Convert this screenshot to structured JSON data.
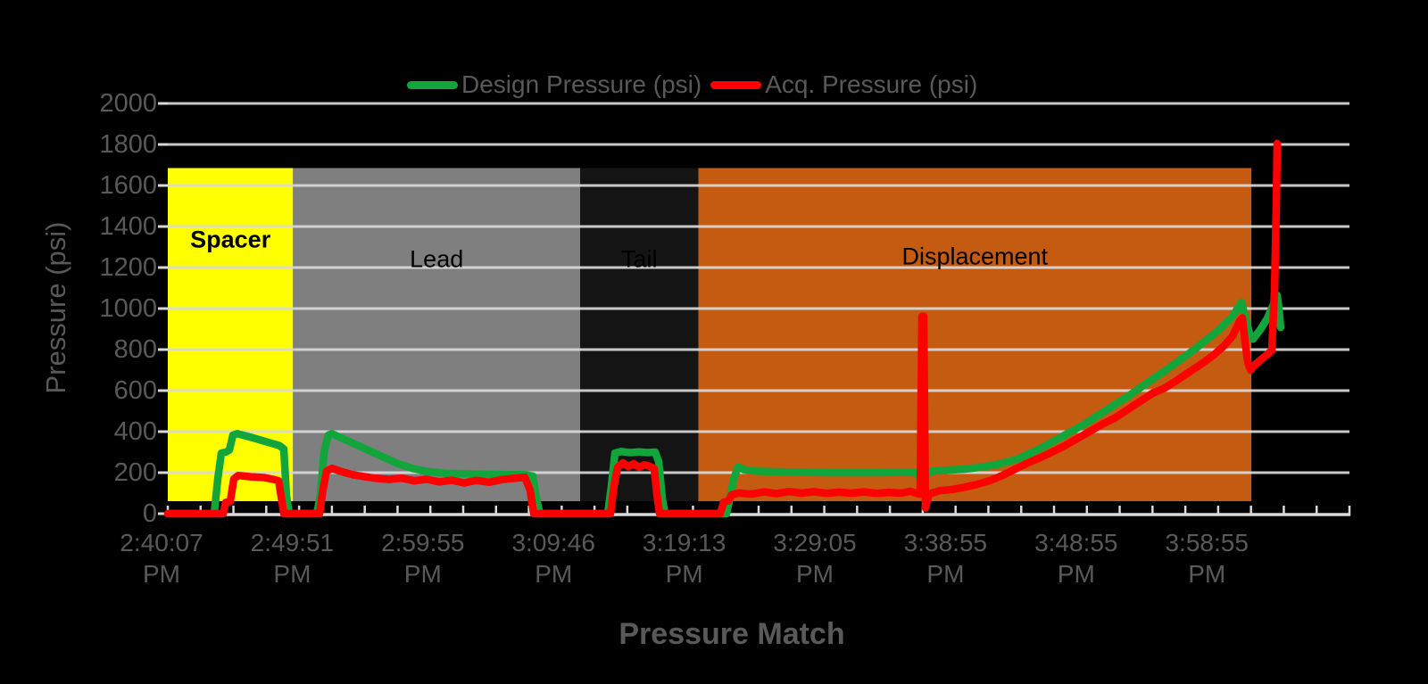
{
  "chart_data": {
    "type": "line",
    "title": "Pressure Match",
    "ylabel": "Pressure (psi)",
    "ylim": [
      0,
      2000
    ],
    "ytick_step": 200,
    "xticklabels": [
      "2:40:07 PM",
      "2:49:51 PM",
      "2:59:55 PM",
      "3:09:46 PM",
      "3:19:13 PM",
      "3:29:05 PM",
      "3:38:55 PM",
      "3:48:55 PM",
      "3:58:55 PM"
    ],
    "grid": true,
    "legend_position": "top-center",
    "background_color": "#000000",
    "text_color": "#595959",
    "gridline_color": "#D9D9D9",
    "x_units": "fraction of plotted time axis (0 = 2:40:07 PM)",
    "regions": [
      {
        "label": "Spacer",
        "color": "#FFFF00",
        "x0": 0.0,
        "x1": 0.106,
        "top_psi": 1685
      },
      {
        "label": "Lead",
        "color": "#7F7F7F",
        "x0": 0.106,
        "x1": 0.349,
        "top_psi": 1685
      },
      {
        "label": "Tail",
        "color": "#141414",
        "x0": 0.349,
        "x1": 0.449,
        "top_psi": 1685
      },
      {
        "label": "Displacement",
        "color": "#C55A11",
        "x0": 0.449,
        "x1": 0.917,
        "top_psi": 1685
      }
    ],
    "series": [
      {
        "name": "Design Pressure (psi)",
        "color": "#12A53C",
        "points": [
          [
            0.0,
            0
          ],
          [
            0.0393,
            0
          ],
          [
            0.0423,
            170
          ],
          [
            0.0453,
            295
          ],
          [
            0.0491,
            300
          ],
          [
            0.0521,
            310
          ],
          [
            0.0551,
            383
          ],
          [
            0.0589,
            390
          ],
          [
            0.0733,
            368
          ],
          [
            0.0884,
            342
          ],
          [
            0.0944,
            332
          ],
          [
            0.0982,
            315
          ],
          [
            0.1004,
            90
          ],
          [
            0.1027,
            0
          ],
          [
            0.1261,
            0
          ],
          [
            0.1292,
            90
          ],
          [
            0.1322,
            300
          ],
          [
            0.1359,
            383
          ],
          [
            0.139,
            390
          ],
          [
            0.1495,
            362
          ],
          [
            0.1646,
            323
          ],
          [
            0.1797,
            283
          ],
          [
            0.1949,
            243
          ],
          [
            0.2077,
            220
          ],
          [
            0.2198,
            205
          ],
          [
            0.2356,
            197
          ],
          [
            0.2583,
            193
          ],
          [
            0.2809,
            191
          ],
          [
            0.3021,
            190
          ],
          [
            0.3089,
            183
          ],
          [
            0.3119,
            75
          ],
          [
            0.3149,
            0
          ],
          [
            0.3723,
            0
          ],
          [
            0.3753,
            130
          ],
          [
            0.3784,
            295
          ],
          [
            0.3837,
            303
          ],
          [
            0.3912,
            298
          ],
          [
            0.3988,
            301
          ],
          [
            0.4063,
            298
          ],
          [
            0.4124,
            300
          ],
          [
            0.4154,
            255
          ],
          [
            0.4184,
            75
          ],
          [
            0.4207,
            0
          ],
          [
            0.4728,
            0
          ],
          [
            0.4758,
            80
          ],
          [
            0.4789,
            170
          ],
          [
            0.4826,
            228
          ],
          [
            0.4879,
            214
          ],
          [
            0.497,
            208
          ],
          [
            0.5121,
            205
          ],
          [
            0.5347,
            202
          ],
          [
            0.5574,
            200
          ],
          [
            0.58,
            200
          ],
          [
            0.6027,
            200
          ],
          [
            0.6223,
            201
          ],
          [
            0.6329,
            200
          ],
          [
            0.6359,
            185
          ],
          [
            0.6389,
            122
          ],
          [
            0.642,
            190
          ],
          [
            0.6465,
            207
          ],
          [
            0.6586,
            212
          ],
          [
            0.6737,
            217
          ],
          [
            0.6888,
            227
          ],
          [
            0.7024,
            241
          ],
          [
            0.719,
            266
          ],
          [
            0.7379,
            316
          ],
          [
            0.7568,
            376
          ],
          [
            0.7757,
            436
          ],
          [
            0.7946,
            506
          ],
          [
            0.8135,
            576
          ],
          [
            0.8323,
            651
          ],
          [
            0.8512,
            726
          ],
          [
            0.8701,
            806
          ],
          [
            0.8867,
            882
          ],
          [
            0.9003,
            956
          ],
          [
            0.9086,
            1030
          ],
          [
            0.9124,
            948
          ],
          [
            0.9154,
            878
          ],
          [
            0.9184,
            851
          ],
          [
            0.9245,
            896
          ],
          [
            0.9305,
            952
          ],
          [
            0.9358,
            1022
          ],
          [
            0.9388,
            1065
          ],
          [
            0.9403,
            998
          ],
          [
            0.9418,
            908
          ]
        ]
      },
      {
        "name": "Acq. Pressure (psi)",
        "color": "#FF0000",
        "points": [
          [
            0.0,
            0
          ],
          [
            0.0468,
            0
          ],
          [
            0.0491,
            55
          ],
          [
            0.0529,
            60
          ],
          [
            0.0559,
            170
          ],
          [
            0.0597,
            186
          ],
          [
            0.0702,
            180
          ],
          [
            0.0816,
            176
          ],
          [
            0.0891,
            168
          ],
          [
            0.0937,
            160
          ],
          [
            0.0959,
            85
          ],
          [
            0.0982,
            0
          ],
          [
            0.1284,
            0
          ],
          [
            0.1314,
            120
          ],
          [
            0.1344,
            207
          ],
          [
            0.139,
            221
          ],
          [
            0.1465,
            206
          ],
          [
            0.1563,
            190
          ],
          [
            0.1662,
            181
          ],
          [
            0.1767,
            172
          ],
          [
            0.1873,
            167
          ],
          [
            0.1979,
            173
          ],
          [
            0.2085,
            160
          ],
          [
            0.219,
            168
          ],
          [
            0.2296,
            155
          ],
          [
            0.2402,
            163
          ],
          [
            0.2508,
            150
          ],
          [
            0.2613,
            162
          ],
          [
            0.2719,
            153
          ],
          [
            0.2825,
            166
          ],
          [
            0.2931,
            172
          ],
          [
            0.3021,
            178
          ],
          [
            0.3066,
            115
          ],
          [
            0.3097,
            0
          ],
          [
            0.3746,
            0
          ],
          [
            0.3776,
            135
          ],
          [
            0.3807,
            226
          ],
          [
            0.3852,
            248
          ],
          [
            0.3897,
            230
          ],
          [
            0.3943,
            243
          ],
          [
            0.3988,
            226
          ],
          [
            0.4033,
            238
          ],
          [
            0.4078,
            231
          ],
          [
            0.4116,
            220
          ],
          [
            0.4139,
            95
          ],
          [
            0.4162,
            0
          ],
          [
            0.4675,
            0
          ],
          [
            0.4705,
            56
          ],
          [
            0.4743,
            62
          ],
          [
            0.4773,
            92
          ],
          [
            0.4834,
            101
          ],
          [
            0.494,
            95
          ],
          [
            0.5045,
            106
          ],
          [
            0.5151,
            98
          ],
          [
            0.5257,
            108
          ],
          [
            0.5363,
            100
          ],
          [
            0.5468,
            107
          ],
          [
            0.5574,
            99
          ],
          [
            0.568,
            105
          ],
          [
            0.5785,
            100
          ],
          [
            0.5891,
            106
          ],
          [
            0.5997,
            99
          ],
          [
            0.6103,
            104
          ],
          [
            0.6208,
            100
          ],
          [
            0.6284,
            109
          ],
          [
            0.6344,
            98
          ],
          [
            0.6367,
            95
          ],
          [
            0.6382,
            962
          ],
          [
            0.6397,
            962
          ],
          [
            0.6412,
            28
          ],
          [
            0.6442,
            96
          ],
          [
            0.6533,
            112
          ],
          [
            0.6639,
            118
          ],
          [
            0.6744,
            129
          ],
          [
            0.685,
            143
          ],
          [
            0.6956,
            161
          ],
          [
            0.7062,
            186
          ],
          [
            0.7167,
            216
          ],
          [
            0.7273,
            246
          ],
          [
            0.7379,
            272
          ],
          [
            0.7485,
            301
          ],
          [
            0.759,
            331
          ],
          [
            0.7696,
            366
          ],
          [
            0.7802,
            401
          ],
          [
            0.7908,
            436
          ],
          [
            0.8013,
            466
          ],
          [
            0.8119,
            506
          ],
          [
            0.8225,
            546
          ],
          [
            0.8331,
            586
          ],
          [
            0.8436,
            612
          ],
          [
            0.8542,
            651
          ],
          [
            0.8648,
            692
          ],
          [
            0.8754,
            732
          ],
          [
            0.8845,
            771
          ],
          [
            0.8935,
            816
          ],
          [
            0.9011,
            866
          ],
          [
            0.9071,
            941
          ],
          [
            0.9094,
            955
          ],
          [
            0.9116,
            838
          ],
          [
            0.9139,
            740
          ],
          [
            0.9162,
            701
          ],
          [
            0.9207,
            729
          ],
          [
            0.9252,
            752
          ],
          [
            0.9298,
            773
          ],
          [
            0.9343,
            796
          ],
          [
            0.9366,
            1100
          ],
          [
            0.9381,
            1500
          ],
          [
            0.9388,
            1805
          ]
        ]
      }
    ]
  }
}
